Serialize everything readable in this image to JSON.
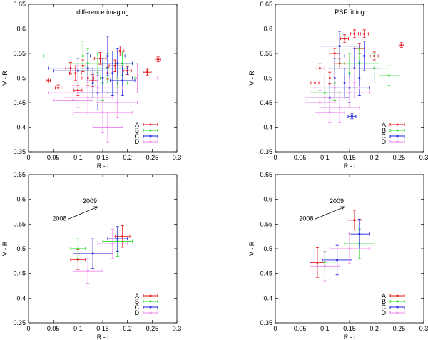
{
  "figure_description_free": true,
  "colors": {
    "A": "#e8141c",
    "B": "#22dc22",
    "C": "#2222e0",
    "D": "#ef8cef",
    "axis": "#000000"
  },
  "chart_data": [
    {
      "type": "scatter",
      "title": "difference imaging",
      "xlabel": "R - i",
      "ylabel": "V - R",
      "xlim": [
        0,
        0.3
      ],
      "ylim": [
        0.35,
        0.65
      ],
      "xticks": [
        "0",
        "0.05",
        "0.1",
        "0.15",
        "0.2",
        "0.25",
        "0.3"
      ],
      "yticks": [
        "0.35",
        "0.4",
        "0.45",
        "0.5",
        "0.55",
        "0.6",
        "0.65"
      ],
      "legend": {
        "position": "bottom-right",
        "entries": [
          "A",
          "B",
          "C",
          "D"
        ]
      },
      "series": [
        {
          "name": "A",
          "color": "#e8141c",
          "points": [
            [
              0.04,
              0.495,
              0.004,
              0.005
            ],
            [
              0.06,
              0.48,
              0.006,
              0.006
            ],
            [
              0.085,
              0.52,
              0.01,
              0.012
            ],
            [
              0.095,
              0.51,
              0.012,
              0.015
            ],
            [
              0.1,
              0.475,
              0.008,
              0.01
            ],
            [
              0.11,
              0.525,
              0.01,
              0.012
            ],
            [
              0.12,
              0.5,
              0.012,
              0.015
            ],
            [
              0.13,
              0.495,
              0.01,
              0.012
            ],
            [
              0.145,
              0.54,
              0.012,
              0.012
            ],
            [
              0.16,
              0.51,
              0.01,
              0.012
            ],
            [
              0.175,
              0.525,
              0.012,
              0.012
            ],
            [
              0.185,
              0.555,
              0.008,
              0.01
            ],
            [
              0.2,
              0.515,
              0.008,
              0.008
            ],
            [
              0.24,
              0.512,
              0.008,
              0.006
            ],
            [
              0.262,
              0.538,
              0.005,
              0.005
            ]
          ]
        },
        {
          "name": "B",
          "color": "#22dc22",
          "points": [
            [
              0.11,
              0.545,
              0.08,
              0.03
            ],
            [
              0.14,
              0.51,
              0.06,
              0.04
            ],
            [
              0.16,
              0.52,
              0.04,
              0.03
            ],
            [
              0.18,
              0.5,
              0.035,
              0.03
            ],
            [
              0.15,
              0.49,
              0.05,
              0.035
            ],
            [
              0.12,
              0.53,
              0.04,
              0.03
            ],
            [
              0.19,
              0.53,
              0.02,
              0.025
            ]
          ]
        },
        {
          "name": "C",
          "color": "#2222e0",
          "points": [
            [
              0.12,
              0.52,
              0.08,
              0.03
            ],
            [
              0.15,
              0.5,
              0.06,
              0.04
            ],
            [
              0.16,
              0.545,
              0.035,
              0.04
            ],
            [
              0.13,
              0.49,
              0.05,
              0.03
            ],
            [
              0.17,
              0.51,
              0.03,
              0.045
            ],
            [
              0.14,
              0.47,
              0.04,
              0.035
            ],
            [
              0.18,
              0.53,
              0.03,
              0.03
            ],
            [
              0.1,
              0.515,
              0.05,
              0.025
            ],
            [
              0.19,
              0.495,
              0.025,
              0.03
            ]
          ]
        },
        {
          "name": "D",
          "color": "#ef8cef",
          "points": [
            [
              0.1,
              0.47,
              0.06,
              0.03
            ],
            [
              0.15,
              0.43,
              0.06,
              0.04
            ],
            [
              0.12,
              0.46,
              0.05,
              0.035
            ],
            [
              0.18,
              0.45,
              0.04,
              0.03
            ],
            [
              0.16,
              0.4,
              0.03,
              0.03
            ],
            [
              0.22,
              0.5,
              0.04,
              0.03
            ],
            [
              0.14,
              0.48,
              0.05,
              0.03
            ],
            [
              0.09,
              0.455,
              0.04,
              0.03
            ]
          ]
        }
      ]
    },
    {
      "type": "scatter",
      "title": "PSF fitting",
      "xlabel": "R - i",
      "ylabel": "V - R",
      "xlim": [
        0,
        0.3
      ],
      "ylim": [
        0.35,
        0.65
      ],
      "xticks": [
        "0",
        "0.05",
        "0.1",
        "0.15",
        "0.2",
        "0.25",
        "0.3"
      ],
      "yticks": [
        "0.35",
        "0.4",
        "0.45",
        "0.5",
        "0.55",
        "0.6",
        "0.65"
      ],
      "legend": {
        "position": "bottom-right",
        "entries": [
          "A",
          "B",
          "C",
          "D"
        ]
      },
      "series": [
        {
          "name": "A",
          "color": "#e8141c",
          "points": [
            [
              0.09,
              0.52,
              0.01,
              0.01
            ],
            [
              0.11,
              0.5,
              0.01,
              0.012
            ],
            [
              0.12,
              0.55,
              0.01,
              0.01
            ],
            [
              0.14,
              0.58,
              0.008,
              0.008
            ],
            [
              0.16,
              0.59,
              0.008,
              0.008
            ],
            [
              0.18,
              0.59,
              0.008,
              0.008
            ],
            [
              0.17,
              0.56,
              0.01,
              0.01
            ],
            [
              0.13,
              0.53,
              0.01,
              0.01
            ],
            [
              0.2,
              0.545,
              0.008,
              0.008
            ],
            [
              0.255,
              0.567,
              0.005,
              0.005
            ],
            [
              0.08,
              0.49,
              0.008,
              0.01
            ]
          ]
        },
        {
          "name": "B",
          "color": "#22dc22",
          "points": [
            [
              0.15,
              0.51,
              0.05,
              0.04
            ],
            [
              0.17,
              0.53,
              0.04,
              0.03
            ],
            [
              0.12,
              0.49,
              0.04,
              0.035
            ],
            [
              0.2,
              0.52,
              0.03,
              0.03
            ],
            [
              0.1,
              0.47,
              0.03,
              0.03
            ],
            [
              0.23,
              0.505,
              0.02,
              0.02
            ]
          ]
        },
        {
          "name": "C",
          "color": "#2222e0",
          "points": [
            [
              0.14,
              0.49,
              0.07,
              0.03
            ],
            [
              0.16,
              0.52,
              0.05,
              0.04
            ],
            [
              0.13,
              0.565,
              0.04,
              0.03
            ],
            [
              0.18,
              0.545,
              0.04,
              0.03
            ],
            [
              0.12,
              0.5,
              0.05,
              0.04
            ],
            [
              0.15,
              0.48,
              0.04,
              0.03
            ],
            [
              0.17,
              0.5,
              0.03,
              0.035
            ],
            [
              0.155,
              0.422,
              0.008,
              0.005
            ],
            [
              0.11,
              0.46,
              0.04,
              0.03
            ]
          ]
        },
        {
          "name": "D",
          "color": "#ef8cef",
          "points": [
            [
              0.1,
              0.46,
              0.04,
              0.03
            ],
            [
              0.13,
              0.44,
              0.04,
              0.03
            ],
            [
              0.12,
              0.48,
              0.05,
              0.03
            ],
            [
              0.09,
              0.45,
              0.03,
              0.025
            ],
            [
              0.15,
              0.47,
              0.04,
              0.03
            ],
            [
              0.11,
              0.43,
              0.03,
              0.02
            ],
            [
              0.16,
              0.49,
              0.04,
              0.03
            ]
          ]
        }
      ]
    },
    {
      "type": "scatter",
      "title": "",
      "xlabel": "R - i",
      "ylabel": "V - R",
      "xlim": [
        0,
        0.3
      ],
      "ylim": [
        0.35,
        0.65
      ],
      "xticks": [
        "0",
        "0.05",
        "0.1",
        "0.15",
        "0.2",
        "0.25",
        "0.3"
      ],
      "yticks": [
        "0.35",
        "0.4",
        "0.45",
        "0.5",
        "0.55",
        "0.6",
        "0.65"
      ],
      "legend": {
        "position": "bottom-right",
        "entries": [
          "A",
          "B",
          "C",
          "D"
        ]
      },
      "annotation": {
        "from_label": "2008",
        "to_label": "2009",
        "from": [
          0.08,
          0.56
        ],
        "to": [
          0.14,
          0.585
        ]
      },
      "series": [
        {
          "name": "A",
          "color": "#e8141c",
          "points": [
            [
              0.1,
              0.478,
              0.015,
              0.02
            ],
            [
              0.19,
              0.525,
              0.015,
              0.022
            ]
          ]
        },
        {
          "name": "B",
          "color": "#22dc22",
          "points": [
            [
              0.1,
              0.5,
              0.015,
              0.02
            ],
            [
              0.18,
              0.515,
              0.03,
              0.03
            ]
          ]
        },
        {
          "name": "C",
          "color": "#2222e0",
          "points": [
            [
              0.13,
              0.49,
              0.04,
              0.03
            ],
            [
              0.18,
              0.52,
              0.02,
              0.025
            ]
          ]
        },
        {
          "name": "D",
          "color": "#ef8cef",
          "points": [
            [
              0.12,
              0.455,
              0.03,
              0.025
            ],
            [
              0.17,
              0.51,
              0.03,
              0.03
            ]
          ]
        }
      ]
    },
    {
      "type": "scatter",
      "title": "",
      "xlabel": "R - i",
      "ylabel": "V - R",
      "xlim": [
        0,
        0.3
      ],
      "ylim": [
        0.35,
        0.65
      ],
      "xticks": [
        "0",
        "0.05",
        "0.1",
        "0.15",
        "0.2",
        "0.25",
        "0.3"
      ],
      "yticks": [
        "0.35",
        "0.4",
        "0.45",
        "0.5",
        "0.55",
        "0.6",
        "0.65"
      ],
      "legend": {
        "position": "bottom-right",
        "entries": [
          "A",
          "B",
          "C",
          "D"
        ]
      },
      "annotation": {
        "from_label": "2008",
        "to_label": "2009",
        "from": [
          0.08,
          0.56
        ],
        "to": [
          0.14,
          0.585
        ]
      },
      "series": [
        {
          "name": "A",
          "color": "#e8141c",
          "points": [
            [
              0.085,
              0.472,
              0.015,
              0.03
            ],
            [
              0.16,
              0.558,
              0.015,
              0.02
            ]
          ]
        },
        {
          "name": "B",
          "color": "#22dc22",
          "points": [
            [
              0.1,
              0.473,
              0.02,
              0.02
            ],
            [
              0.17,
              0.51,
              0.03,
              0.03
            ]
          ]
        },
        {
          "name": "C",
          "color": "#2222e0",
          "points": [
            [
              0.125,
              0.477,
              0.03,
              0.03
            ],
            [
              0.17,
              0.53,
              0.02,
              0.03
            ]
          ]
        },
        {
          "name": "D",
          "color": "#ef8cef",
          "points": [
            [
              0.1,
              0.465,
              0.03,
              0.03
            ],
            [
              0.15,
              0.5,
              0.04,
              0.03
            ]
          ]
        }
      ]
    }
  ]
}
